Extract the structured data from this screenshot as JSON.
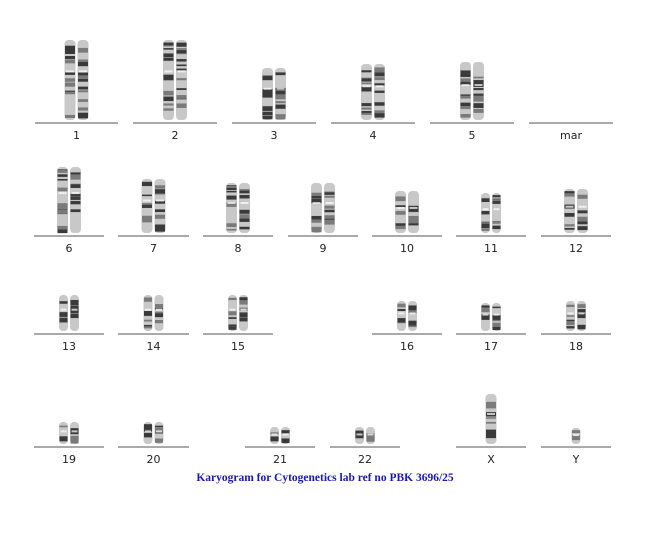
{
  "karyogram": {
    "groups": [
      {
        "label": "1"
      },
      {
        "label": "2"
      },
      {
        "label": "3"
      },
      {
        "label": "4"
      },
      {
        "label": "5"
      },
      {
        "label": "mar"
      },
      {
        "label": "6"
      },
      {
        "label": "7"
      },
      {
        "label": "8"
      },
      {
        "label": "9"
      },
      {
        "label": "10"
      },
      {
        "label": "11"
      },
      {
        "label": "12"
      },
      {
        "label": "13"
      },
      {
        "label": "14"
      },
      {
        "label": "15"
      },
      {
        "label": "16"
      },
      {
        "label": "17"
      },
      {
        "label": "18"
      },
      {
        "label": "19"
      },
      {
        "label": "20"
      },
      {
        "label": "21"
      },
      {
        "label": "22"
      },
      {
        "label": "X"
      },
      {
        "label": "Y"
      }
    ],
    "caption": "Karyogram for Cytogenetics lab ref no PBK 3696/25"
  }
}
